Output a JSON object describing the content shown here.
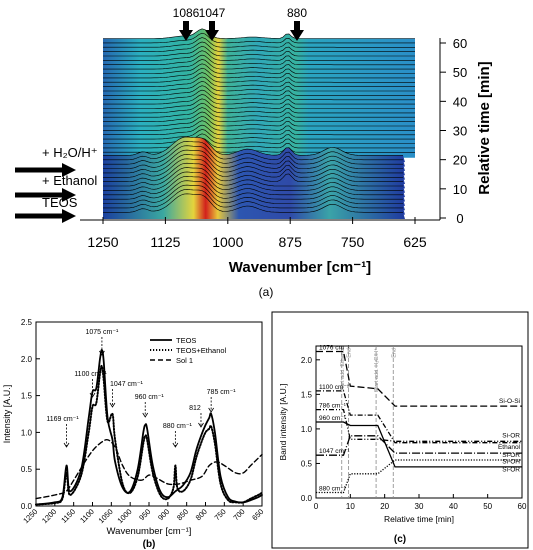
{
  "colors": {
    "surface_low": "#1f3a9e",
    "surface_mid": "#2fa6b8",
    "surface_high": "#e8d23a",
    "surface_peak": "#d8201a",
    "mesh_line": "#000000",
    "arrow": "#000000",
    "panel_border": "#000000"
  },
  "panel_a": {
    "caption": "(a)",
    "xlabel": "Wavenumber [cm⁻¹]",
    "ylabel": "Relative time [min]",
    "x_ticks": [
      "1250",
      "1125",
      "1000",
      "875",
      "750",
      "625"
    ],
    "y_ticks": [
      "0",
      "10",
      "20",
      "30",
      "40",
      "50",
      "60"
    ],
    "peak_labels": [
      "1086",
      "1047",
      "880"
    ],
    "step_labels": [
      "+ H₂O/H⁺",
      "+ Ethanol",
      "TEOS"
    ]
  },
  "chart_data": [
    {
      "type": "area",
      "panel": "(a)",
      "xlabel": "Wavenumber [cm⁻¹]",
      "ylabel": "Relative time [min]",
      "xlim": [
        1250,
        625
      ],
      "ylim": [
        0,
        60
      ],
      "annotations": [
        {
          "text": "1086",
          "x": 1086
        },
        {
          "text": "1047",
          "x": 1047
        },
        {
          "text": "880",
          "x": 880
        },
        {
          "text": "+ H₂O/H⁺",
          "y": 20
        },
        {
          "text": "+ Ethanol",
          "y": 10
        },
        {
          "text": "TEOS",
          "y": 0
        }
      ]
    },
    {
      "type": "line",
      "panel": "(b)",
      "xlabel": "Wavenumber [cm⁻¹]",
      "ylabel": "Intensity [A.U.]",
      "xlim": [
        1250,
        650
      ],
      "ylim": [
        0,
        2.5
      ],
      "x_ticks": [
        1250,
        1200,
        1150,
        1100,
        1050,
        1000,
        950,
        900,
        850,
        800,
        750,
        700,
        650
      ],
      "y_ticks": [
        0.0,
        0.5,
        1.0,
        1.5,
        2.0,
        2.5
      ],
      "legend": "top-right",
      "series": [
        {
          "name": "TEOS",
          "style": "solid",
          "x": [
            1250,
            1200,
            1180,
            1169,
            1160,
            1130,
            1110,
            1100,
            1090,
            1080,
            1075,
            1070,
            1060,
            1047,
            1040,
            1020,
            1000,
            980,
            965,
            960,
            955,
            940,
            920,
            900,
            880,
            860,
            840,
            825,
            812,
            800,
            790,
            785,
            775,
            760,
            740,
            720,
            700,
            680,
            660,
            650
          ],
          "y": [
            0.02,
            0.05,
            0.12,
            0.55,
            0.2,
            0.5,
            1.2,
            1.55,
            1.6,
            2.0,
            2.12,
            1.95,
            1.2,
            0.9,
            0.6,
            0.25,
            0.2,
            0.5,
            1.0,
            1.1,
            1.05,
            0.55,
            0.2,
            0.12,
            0.2,
            0.28,
            0.45,
            0.75,
            0.95,
            1.1,
            1.2,
            1.25,
            1.0,
            0.4,
            0.12,
            0.06,
            0.05,
            0.08,
            0.12,
            0.15
          ]
        },
        {
          "name": "TEOS+Ethanol",
          "style": "dotted",
          "x": [
            1250,
            1200,
            1180,
            1169,
            1160,
            1130,
            1110,
            1100,
            1090,
            1080,
            1075,
            1070,
            1060,
            1047,
            1040,
            1020,
            1000,
            980,
            965,
            960,
            955,
            940,
            920,
            900,
            885,
            880,
            875,
            860,
            840,
            825,
            812,
            800,
            790,
            785,
            775,
            760,
            740,
            720,
            700,
            680,
            660,
            650
          ],
          "y": [
            0.02,
            0.04,
            0.1,
            0.45,
            0.15,
            0.42,
            1.0,
            1.35,
            1.4,
            1.8,
            1.9,
            1.7,
            1.15,
            1.25,
            0.9,
            0.3,
            0.18,
            0.4,
            0.85,
            0.95,
            0.9,
            0.45,
            0.15,
            0.1,
            0.25,
            0.55,
            0.25,
            0.2,
            0.35,
            0.65,
            0.85,
            1.0,
            1.05,
            1.08,
            0.85,
            0.3,
            0.08,
            0.05,
            0.05,
            0.1,
            0.15,
            0.18
          ]
        },
        {
          "name": "Sol 1",
          "style": "dashed",
          "x": [
            1250,
            1200,
            1170,
            1150,
            1120,
            1100,
            1080,
            1060,
            1040,
            1020,
            1000,
            970,
            950,
            930,
            900,
            870,
            840,
            810,
            790,
            770,
            750,
            720,
            700,
            680,
            660,
            650
          ],
          "y": [
            0.1,
            0.15,
            0.2,
            0.35,
            0.6,
            0.75,
            0.85,
            0.9,
            0.8,
            0.55,
            0.4,
            0.35,
            0.42,
            0.38,
            0.3,
            0.3,
            0.35,
            0.4,
            0.55,
            0.6,
            0.55,
            0.45,
            0.45,
            0.55,
            0.65,
            0.7
          ]
        }
      ],
      "annotations": [
        {
          "text": "1169 cm⁻¹",
          "x": 1169
        },
        {
          "text": "1100 cm⁻¹",
          "x": 1100
        },
        {
          "text": "1075 cm⁻¹",
          "x": 1075
        },
        {
          "text": "1047 cm⁻¹",
          "x": 1047
        },
        {
          "text": "960 cm⁻¹",
          "x": 960
        },
        {
          "text": "880 cm⁻¹",
          "x": 880
        },
        {
          "text": "812",
          "x": 812
        },
        {
          "text": "785 cm⁻¹",
          "x": 785
        }
      ]
    },
    {
      "type": "line",
      "panel": "(c)",
      "xlabel": "Relative time [min]",
      "ylabel": "Band intensity [A.U.]",
      "xlim": [
        0,
        60
      ],
      "ylim": [
        0,
        2.2
      ],
      "x_ticks": [
        0,
        10,
        20,
        30,
        40,
        50,
        60
      ],
      "y_ticks": [
        0.0,
        0.5,
        1.0,
        1.5,
        2.0
      ],
      "events": [
        {
          "label": "Start add. Ethanol",
          "x": 7.5
        },
        {
          "label": "End",
          "x": 9.5
        },
        {
          "label": "Start add. H₂O/H⁺",
          "x": 17.5
        },
        {
          "label": "End",
          "x": 22.5
        }
      ],
      "series": [
        {
          "name": "1076 cm⁻¹",
          "end_label": "Si-O-Si",
          "style": "long-dash",
          "x": [
            0,
            8,
            10,
            18,
            23,
            60
          ],
          "y": [
            2.12,
            2.12,
            1.62,
            1.58,
            1.33,
            1.33
          ]
        },
        {
          "name": "1100 cm⁻¹",
          "end_label": "Si-OR",
          "style": "dash-dot",
          "x": [
            0,
            8,
            10,
            18,
            23,
            60
          ],
          "y": [
            1.55,
            1.55,
            1.2,
            1.2,
            0.8,
            0.8
          ]
        },
        {
          "name": "786 cm⁻¹",
          "end_label": "Ethanol",
          "style": "dash-dot-dot",
          "x": [
            0,
            8,
            10,
            18,
            23,
            60
          ],
          "y": [
            1.28,
            1.28,
            0.85,
            0.85,
            0.82,
            0.82
          ]
        },
        {
          "name": "960 cm⁻¹",
          "end_label": "Si-OR",
          "style": "solid",
          "x": [
            0,
            8,
            10,
            18,
            23,
            60
          ],
          "y": [
            1.1,
            1.1,
            1.05,
            1.05,
            0.45,
            0.45
          ]
        },
        {
          "name": "1047 cm⁻¹",
          "end_label": "Si-OR",
          "style": "long-dash-dot",
          "x": [
            0,
            8,
            10,
            18,
            23,
            60
          ],
          "y": [
            0.62,
            0.62,
            0.9,
            0.9,
            0.65,
            0.65
          ]
        },
        {
          "name": "880 cm⁻¹",
          "end_label": "Si-OH",
          "style": "dotted",
          "x": [
            0,
            8,
            10,
            18,
            23,
            60
          ],
          "y": [
            0.08,
            0.08,
            0.35,
            0.35,
            0.55,
            0.55
          ]
        }
      ]
    }
  ],
  "panel_b": {
    "caption": "(b)",
    "xlabel": "Wavenumber [cm⁻¹]",
    "ylabel": "Intensity [A.U.]"
  },
  "panel_c": {
    "caption": "(c)",
    "xlabel": "Relative time [min]",
    "ylabel": "Band intensity [A.U.]",
    "right_labels": [
      "Si-O-Si",
      "Si-OR",
      "Ethanol",
      "Si-OR",
      "Si-OH",
      "Si-OR"
    ]
  }
}
